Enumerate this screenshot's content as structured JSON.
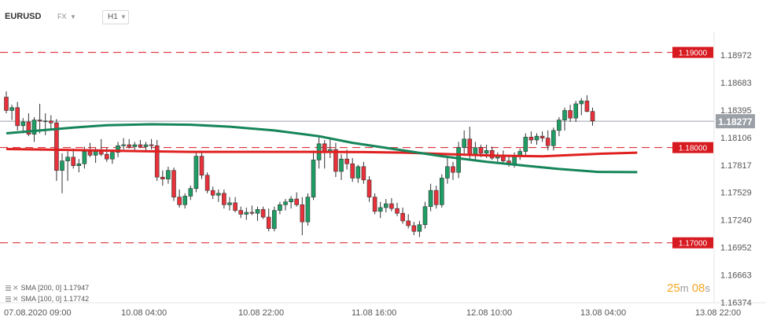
{
  "header": {
    "symbol": "EURUSD",
    "market": "FX",
    "timeframe": "H1"
  },
  "legend": [
    {
      "label": "SMA",
      "params": "[200, 0]",
      "value": "1.17947",
      "color": "#e02020"
    },
    {
      "label": "SMA",
      "params": "[100, 0]",
      "value": "1.17742",
      "color": "#16855a"
    }
  ],
  "timer": {
    "minutes": "25",
    "m_unit": "m",
    "seconds": "08",
    "s_unit": "s"
  },
  "chart_data": {
    "type": "candlestick",
    "y_ticks": [
      "1.18972",
      "1.18683",
      "1.18395",
      "1.18106",
      "1.17817",
      "1.17529",
      "1.17240",
      "1.16952",
      "1.16663",
      "1.16374"
    ],
    "ylim": [
      1.1637,
      1.1922
    ],
    "x_ticks": [
      "07.08.2020  09:00",
      "10.08  04:00",
      "10.08  22:00",
      "11.08  16:00",
      "12.08  10:00",
      "13.08  04:00",
      "13.08  22:00"
    ],
    "current_price": "1.18277",
    "levels": [
      {
        "value": 1.19,
        "label": "1.19000"
      },
      {
        "value": 1.18,
        "label": "1.18000"
      },
      {
        "value": 1.17,
        "label": "1.17000"
      }
    ],
    "colors": {
      "up": "#1e9e64",
      "down": "#e8313a",
      "level": "#d71920",
      "price_line": "#9aa0a6"
    },
    "candles": [
      [
        1.1853,
        1.1859,
        1.1836,
        1.1839
      ],
      [
        1.1839,
        1.1845,
        1.1829,
        1.1842
      ],
      [
        1.1842,
        1.1848,
        1.1818,
        1.1823
      ],
      [
        1.1823,
        1.1831,
        1.1815,
        1.1827
      ],
      [
        1.1827,
        1.1836,
        1.1812,
        1.1814
      ],
      [
        1.1814,
        1.1832,
        1.1806,
        1.1829
      ],
      [
        1.1829,
        1.1846,
        1.1815,
        1.1828
      ],
      [
        1.1828,
        1.1836,
        1.1813,
        1.1828
      ],
      [
        1.1828,
        1.1834,
        1.1819,
        1.1826
      ],
      [
        1.1826,
        1.183,
        1.1765,
        1.1776
      ],
      [
        1.1776,
        1.1794,
        1.1752,
        1.1786
      ],
      [
        1.1786,
        1.1796,
        1.1765,
        1.179
      ],
      [
        1.179,
        1.1799,
        1.1778,
        1.1781
      ],
      [
        1.1781,
        1.1788,
        1.1774,
        1.1783
      ],
      [
        1.1783,
        1.1801,
        1.1778,
        1.1796
      ],
      [
        1.1796,
        1.1805,
        1.179,
        1.1792
      ],
      [
        1.1792,
        1.18,
        1.1784,
        1.1796
      ],
      [
        1.1796,
        1.1809,
        1.1791,
        1.1793
      ],
      [
        1.1793,
        1.18,
        1.1785,
        1.1788
      ],
      [
        1.1788,
        1.1798,
        1.1783,
        1.1795
      ],
      [
        1.1795,
        1.1806,
        1.179,
        1.1802
      ],
      [
        1.1802,
        1.181,
        1.1798,
        1.1803
      ],
      [
        1.1803,
        1.1809,
        1.1799,
        1.1801
      ],
      [
        1.1801,
        1.1806,
        1.1797,
        1.1803
      ],
      [
        1.1803,
        1.1808,
        1.18,
        1.1801
      ],
      [
        1.1801,
        1.1806,
        1.1796,
        1.1803
      ],
      [
        1.1803,
        1.1809,
        1.1798,
        1.1802
      ],
      [
        1.1802,
        1.1808,
        1.1765,
        1.1769
      ],
      [
        1.1769,
        1.1776,
        1.176,
        1.1767
      ],
      [
        1.1767,
        1.178,
        1.1762,
        1.1776
      ],
      [
        1.1776,
        1.1779,
        1.1744,
        1.1748
      ],
      [
        1.1748,
        1.1756,
        1.1737,
        1.174
      ],
      [
        1.174,
        1.1752,
        1.1736,
        1.1749
      ],
      [
        1.1749,
        1.176,
        1.1745,
        1.1757
      ],
      [
        1.1757,
        1.1796,
        1.1753,
        1.1791
      ],
      [
        1.1791,
        1.1796,
        1.1767,
        1.1771
      ],
      [
        1.1771,
        1.1774,
        1.1752,
        1.1755
      ],
      [
        1.1755,
        1.1759,
        1.1746,
        1.175
      ],
      [
        1.175,
        1.1756,
        1.1743,
        1.1752
      ],
      [
        1.1752,
        1.1756,
        1.1736,
        1.174
      ],
      [
        1.174,
        1.1748,
        1.1734,
        1.1742
      ],
      [
        1.1742,
        1.1748,
        1.1732,
        1.1734
      ],
      [
        1.1734,
        1.1738,
        1.1726,
        1.173
      ],
      [
        1.173,
        1.1737,
        1.1724,
        1.1732
      ],
      [
        1.1732,
        1.1739,
        1.1729,
        1.1731
      ],
      [
        1.1731,
        1.1738,
        1.1723,
        1.1735
      ],
      [
        1.1735,
        1.1738,
        1.1725,
        1.1727
      ],
      [
        1.1727,
        1.1736,
        1.1712,
        1.1715
      ],
      [
        1.1715,
        1.1738,
        1.1712,
        1.1734
      ],
      [
        1.1734,
        1.1743,
        1.173,
        1.174
      ],
      [
        1.174,
        1.1746,
        1.1734,
        1.1743
      ],
      [
        1.1743,
        1.1749,
        1.1736,
        1.1746
      ],
      [
        1.1746,
        1.1753,
        1.1738,
        1.174
      ],
      [
        1.174,
        1.1748,
        1.1708,
        1.1722
      ],
      [
        1.1722,
        1.1752,
        1.1718,
        1.1748
      ],
      [
        1.1748,
        1.1797,
        1.1745,
        1.1787
      ],
      [
        1.1787,
        1.1812,
        1.1778,
        1.1804
      ],
      [
        1.1804,
        1.1808,
        1.1778,
        1.1795
      ],
      [
        1.1795,
        1.1809,
        1.1789,
        1.1798
      ],
      [
        1.1798,
        1.1805,
        1.1769,
        1.1775
      ],
      [
        1.1775,
        1.1793,
        1.1766,
        1.1788
      ],
      [
        1.1788,
        1.1798,
        1.1777,
        1.1783
      ],
      [
        1.1783,
        1.1789,
        1.1764,
        1.1768
      ],
      [
        1.1768,
        1.1782,
        1.1763,
        1.178
      ],
      [
        1.178,
        1.1785,
        1.1762,
        1.1766
      ],
      [
        1.1766,
        1.177,
        1.1743,
        1.1748
      ],
      [
        1.1748,
        1.1752,
        1.173,
        1.1733
      ],
      [
        1.1733,
        1.1743,
        1.1726,
        1.1737
      ],
      [
        1.1737,
        1.1746,
        1.1732,
        1.1741
      ],
      [
        1.1741,
        1.1747,
        1.1733,
        1.1736
      ],
      [
        1.1736,
        1.1742,
        1.1728,
        1.1731
      ],
      [
        1.1731,
        1.1737,
        1.172,
        1.1723
      ],
      [
        1.1723,
        1.173,
        1.1715,
        1.1718
      ],
      [
        1.1718,
        1.1722,
        1.1708,
        1.1712
      ],
      [
        1.1712,
        1.1723,
        1.1706,
        1.1719
      ],
      [
        1.1719,
        1.1743,
        1.1715,
        1.1738
      ],
      [
        1.1738,
        1.1762,
        1.1733,
        1.1755
      ],
      [
        1.1755,
        1.176,
        1.1736,
        1.174
      ],
      [
        1.174,
        1.1772,
        1.1737,
        1.1768
      ],
      [
        1.1768,
        1.1789,
        1.1762,
        1.178
      ],
      [
        1.178,
        1.1785,
        1.1766,
        1.1774
      ],
      [
        1.1774,
        1.1806,
        1.1768,
        1.18
      ],
      [
        1.18,
        1.1818,
        1.1792,
        1.1809
      ],
      [
        1.1809,
        1.1822,
        1.1788,
        1.1793
      ],
      [
        1.1793,
        1.1806,
        1.1786,
        1.18
      ],
      [
        1.18,
        1.1803,
        1.179,
        1.1794
      ],
      [
        1.1794,
        1.1803,
        1.1789,
        1.1797
      ],
      [
        1.1797,
        1.1801,
        1.1787,
        1.1789
      ],
      [
        1.1789,
        1.1795,
        1.1785,
        1.1792
      ],
      [
        1.1792,
        1.1797,
        1.1784,
        1.1786
      ],
      [
        1.1786,
        1.1791,
        1.178,
        1.1783
      ],
      [
        1.1783,
        1.1795,
        1.1779,
        1.1792
      ],
      [
        1.1792,
        1.1799,
        1.1787,
        1.1796
      ],
      [
        1.1796,
        1.1815,
        1.179,
        1.1811
      ],
      [
        1.1811,
        1.1817,
        1.1804,
        1.1808
      ],
      [
        1.1808,
        1.1815,
        1.1803,
        1.1812
      ],
      [
        1.1812,
        1.1817,
        1.1806,
        1.181
      ],
      [
        1.181,
        1.1818,
        1.1797,
        1.1802
      ],
      [
        1.1802,
        1.1821,
        1.1797,
        1.1818
      ],
      [
        1.1818,
        1.1832,
        1.1812,
        1.1829
      ],
      [
        1.1829,
        1.1842,
        1.1818,
        1.1839
      ],
      [
        1.1839,
        1.1845,
        1.1827,
        1.1831
      ],
      [
        1.1831,
        1.1849,
        1.1827,
        1.1846
      ],
      [
        1.1846,
        1.1852,
        1.1834,
        1.1849
      ],
      [
        1.1849,
        1.1855,
        1.1837,
        1.1838
      ],
      [
        1.1838,
        1.1842,
        1.1823,
        1.1828
      ]
    ],
    "sma200": [
      [
        0,
        1.17985
      ],
      [
        12,
        1.17975
      ],
      [
        24,
        1.17962
      ],
      [
        33,
        1.17955
      ],
      [
        40,
        1.17955
      ],
      [
        54,
        1.17955
      ],
      [
        64,
        1.17953
      ],
      [
        72,
        1.17946
      ],
      [
        80,
        1.1793
      ],
      [
        88,
        1.17915
      ],
      [
        96,
        1.17908
      ],
      [
        106,
        1.17935
      ],
      [
        113,
        1.17947
      ]
    ],
    "sma100": [
      [
        0,
        1.1815
      ],
      [
        6,
        1.1818
      ],
      [
        12,
        1.1821
      ],
      [
        18,
        1.18235
      ],
      [
        26,
        1.18245
      ],
      [
        33,
        1.1824
      ],
      [
        40,
        1.1822
      ],
      [
        48,
        1.1818
      ],
      [
        56,
        1.1812
      ],
      [
        62,
        1.1805
      ],
      [
        70,
        1.1798
      ],
      [
        78,
        1.1791
      ],
      [
        86,
        1.1785
      ],
      [
        93,
        1.1781
      ],
      [
        99,
        1.17775
      ],
      [
        106,
        1.17745
      ],
      [
        113,
        1.17742
      ]
    ]
  }
}
